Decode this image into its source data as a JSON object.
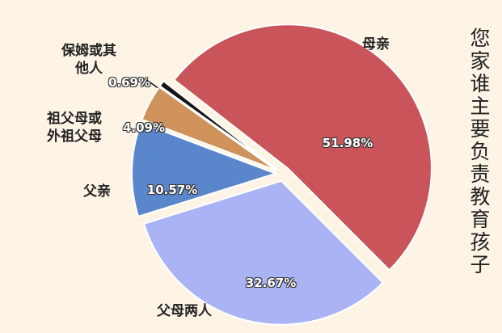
{
  "chart_data": {
    "type": "pie",
    "title": "您家谁主要负责教育孩子",
    "categories": [
      "母亲",
      "父母两人",
      "父亲",
      "祖父母或外祖父母",
      "保姆或其他人"
    ],
    "values": [
      51.98,
      32.67,
      10.57,
      4.09,
      0.69
    ],
    "value_labels": [
      "51.98%",
      "32.67%",
      "10.57%",
      "4.09%",
      "0.69%"
    ],
    "colors": [
      "#c9545a",
      "#aab4f5",
      "#5a86cc",
      "#cf925b",
      "#141414"
    ]
  }
}
